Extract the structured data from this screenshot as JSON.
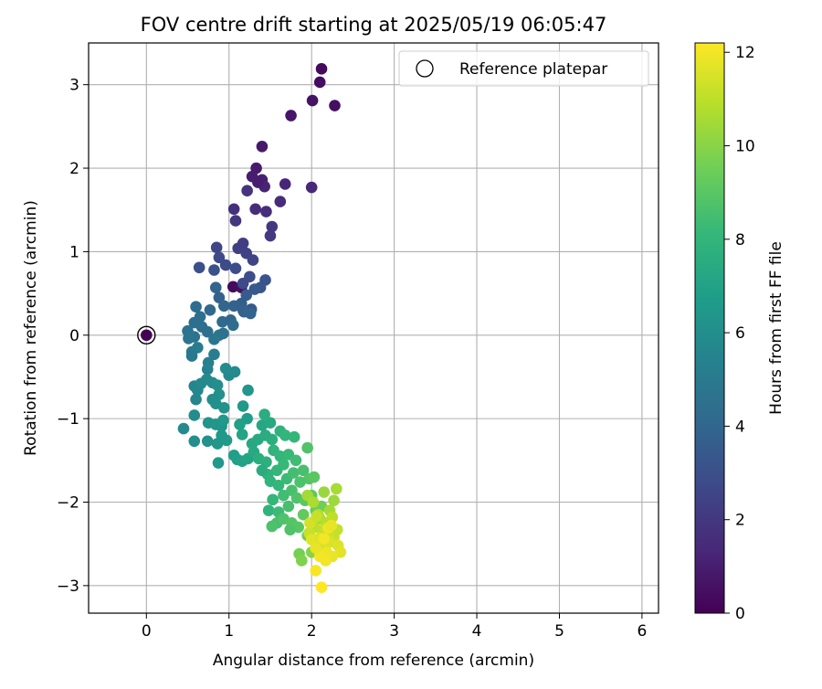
{
  "chart_data": {
    "type": "scatter",
    "title": "FOV centre drift starting at 2025/05/19 06:05:47",
    "xlabel": "Angular distance from reference (arcmin)",
    "ylabel": "Rotation from reference (arcmin)",
    "xlim": [
      -0.7,
      6.2
    ],
    "ylim": [
      -3.33,
      3.5
    ],
    "xticks": [
      0,
      1,
      2,
      3,
      4,
      5,
      6
    ],
    "yticks": [
      -3,
      -2,
      -1,
      0,
      1,
      2,
      3
    ],
    "grid": true,
    "legend": {
      "position": "top-right",
      "entries": [
        "Reference platepar"
      ]
    },
    "reference_point": {
      "label": "Reference platepar",
      "x": 0,
      "y": 0
    },
    "colorbar": {
      "label": "Hours from first FF file",
      "range": [
        0,
        12.2
      ],
      "ticks": [
        0,
        2,
        4,
        6,
        8,
        10,
        12
      ],
      "colormap": "viridis",
      "colors": [
        "#440154",
        "#482878",
        "#3e4989",
        "#31688e",
        "#26828e",
        "#1f9e89",
        "#35b779",
        "#6ece58",
        "#b5de2b",
        "#fde725"
      ]
    },
    "series": [
      {
        "points": [
          [
            0,
            0,
            0
          ],
          [
            1.05,
            0.58,
            0.3
          ],
          [
            1.15,
            0.57,
            0.5
          ],
          [
            2.12,
            3.19,
            0.3
          ],
          [
            2.1,
            3.03,
            0.4
          ],
          [
            2.28,
            2.75,
            0.5
          ],
          [
            2.01,
            2.81,
            0.6
          ],
          [
            1.75,
            2.63,
            0.7
          ],
          [
            1.4,
            2.26,
            0.8
          ],
          [
            1.33,
            2.0,
            0.9
          ],
          [
            1.28,
            1.9,
            1.0
          ],
          [
            1.4,
            1.86,
            1.1
          ],
          [
            1.43,
            1.78,
            1.2
          ],
          [
            1.35,
            1.83,
            1.0
          ],
          [
            1.68,
            1.81,
            1.3
          ],
          [
            2.0,
            1.77,
            1.4
          ],
          [
            1.62,
            1.6,
            1.5
          ],
          [
            1.45,
            1.48,
            1.6
          ],
          [
            1.32,
            1.51,
            1.5
          ],
          [
            1.06,
            1.51,
            1.7
          ],
          [
            1.22,
            1.73,
            1.8
          ],
          [
            1.08,
            1.37,
            1.9
          ],
          [
            1.52,
            1.3,
            2.0
          ],
          [
            1.5,
            1.19,
            2.1
          ]
        ]
      },
      {
        "points": [
          [
            1.17,
            1.1,
            2.2
          ],
          [
            1.11,
            1.04,
            2.3
          ],
          [
            1.21,
            0.98,
            2.4
          ],
          [
            1.29,
            0.9,
            2.5
          ],
          [
            0.85,
            1.05,
            2.6
          ],
          [
            0.88,
            0.93,
            2.7
          ],
          [
            0.96,
            0.84,
            2.8
          ],
          [
            1.08,
            0.8,
            2.9
          ],
          [
            0.64,
            0.81,
            3.0
          ],
          [
            0.82,
            0.78,
            3.1
          ],
          [
            1.44,
            0.66,
            3.2
          ],
          [
            1.38,
            0.57,
            3.3
          ],
          [
            1.31,
            0.55,
            3.4
          ],
          [
            1.25,
            0.7,
            2.9
          ],
          [
            1.17,
            0.62,
            2.7
          ],
          [
            1.21,
            0.48,
            3.5
          ],
          [
            1.15,
            0.38,
            3.6
          ],
          [
            1.27,
            0.31,
            3.4
          ],
          [
            1.18,
            0.28,
            3.7
          ],
          [
            1.06,
            0.35,
            3.8
          ],
          [
            0.84,
            0.57,
            3.9
          ],
          [
            0.88,
            0.45,
            3.8
          ],
          [
            0.94,
            0.35,
            4.0
          ],
          [
            0.77,
            0.3,
            4.1
          ],
          [
            0.92,
            0.16,
            4.2
          ],
          [
            1.02,
            0.18,
            4.0
          ],
          [
            1.17,
            0.3,
            3.8
          ],
          [
            1.26,
            0.26,
            3.9
          ],
          [
            0.6,
            0.34,
            4.3
          ],
          [
            0.65,
            0.22,
            4.4
          ],
          [
            0.58,
            0.15,
            4.5
          ],
          [
            0.5,
            0.05,
            4.6
          ],
          [
            0.58,
            -0.02,
            4.7
          ],
          [
            0.67,
            0.1,
            4.4
          ],
          [
            0.74,
            0.04,
            4.5
          ],
          [
            0.82,
            -0.05,
            4.8
          ],
          [
            0.88,
            0.0,
            4.9
          ],
          [
            0.93,
            0.02,
            4.6
          ],
          [
            1.05,
            0.12,
            4.3
          ],
          [
            0.55,
            -0.2,
            5.0
          ],
          [
            0.62,
            -0.15,
            5.1
          ],
          [
            0.82,
            -0.23,
            5.2
          ],
          [
            0.75,
            -0.33,
            5.3
          ],
          [
            0.74,
            -0.41,
            5.4
          ],
          [
            0.55,
            -0.25,
            4.9
          ],
          [
            0.51,
            -0.04,
            4.8
          ]
        ]
      },
      {
        "points": [
          [
            0.58,
            -0.61,
            5.5
          ],
          [
            0.62,
            -0.66,
            5.6
          ],
          [
            0.66,
            -0.58,
            5.7
          ],
          [
            0.6,
            -0.77,
            5.6
          ],
          [
            0.73,
            -0.53,
            5.8
          ],
          [
            0.8,
            -0.57,
            5.9
          ],
          [
            0.86,
            -0.6,
            6.0
          ],
          [
            0.88,
            -0.71,
            6.1
          ],
          [
            1.0,
            -0.48,
            5.7
          ],
          [
            1.07,
            -0.44,
            5.8
          ],
          [
            0.96,
            -0.4,
            5.9
          ],
          [
            1.23,
            -0.66,
            6.4
          ],
          [
            0.8,
            -0.77,
            6.0
          ],
          [
            0.84,
            -0.82,
            6.1
          ],
          [
            0.94,
            -0.87,
            6.2
          ],
          [
            1.17,
            -0.85,
            6.5
          ],
          [
            0.58,
            -0.96,
            5.9
          ],
          [
            0.45,
            -1.12,
            5.8
          ],
          [
            0.58,
            -1.27,
            6.0
          ],
          [
            0.74,
            -1.27,
            6.2
          ],
          [
            0.75,
            -1.05,
            6.3
          ],
          [
            0.84,
            -1.07,
            6.4
          ],
          [
            0.91,
            -1.09,
            6.3
          ],
          [
            0.93,
            -1.02,
            6.5
          ],
          [
            0.86,
            -1.3,
            6.4
          ],
          [
            0.97,
            -1.26,
            6.6
          ],
          [
            0.91,
            -1.2,
            6.5
          ],
          [
            0.87,
            -1.53,
            6.5
          ],
          [
            1.06,
            -1.44,
            6.8
          ],
          [
            1.1,
            -1.49,
            6.9
          ],
          [
            1.16,
            -1.51,
            7.0
          ],
          [
            1.23,
            -1.48,
            7.1
          ],
          [
            1.16,
            -1.19,
            7.1
          ],
          [
            1.13,
            -1.07,
            6.9
          ],
          [
            1.22,
            -1.0,
            6.8
          ]
        ]
      },
      {
        "points": [
          [
            1.28,
            -1.3,
            7.3
          ],
          [
            1.35,
            -1.25,
            7.4
          ],
          [
            1.44,
            -1.2,
            7.5
          ],
          [
            1.52,
            -1.25,
            7.6
          ],
          [
            1.4,
            -1.08,
            7.2
          ],
          [
            1.5,
            -1.05,
            7.4
          ],
          [
            1.43,
            -0.95,
            7.6
          ],
          [
            1.62,
            -1.15,
            7.8
          ],
          [
            1.68,
            -1.2,
            8.0
          ],
          [
            1.79,
            -1.22,
            8.1
          ],
          [
            1.3,
            -1.4,
            7.4
          ],
          [
            1.36,
            -1.48,
            7.6
          ],
          [
            1.45,
            -1.52,
            7.7
          ],
          [
            1.54,
            -1.38,
            7.9
          ],
          [
            1.62,
            -1.45,
            8.0
          ],
          [
            1.72,
            -1.43,
            8.2
          ],
          [
            1.81,
            -1.5,
            8.4
          ],
          [
            1.66,
            -1.55,
            8.2
          ],
          [
            1.58,
            -1.62,
            8.1
          ],
          [
            1.47,
            -1.67,
            7.8
          ],
          [
            1.4,
            -1.62,
            7.5
          ],
          [
            1.5,
            -1.75,
            7.9
          ],
          [
            1.6,
            -1.8,
            8.1
          ],
          [
            1.7,
            -1.72,
            8.3
          ],
          [
            1.78,
            -1.65,
            8.5
          ],
          [
            1.9,
            -1.62,
            8.6
          ],
          [
            1.95,
            -1.35,
            8.8
          ],
          [
            1.97,
            -1.72,
            8.9
          ],
          [
            2.03,
            -1.7,
            9.0
          ],
          [
            1.86,
            -1.76,
            8.7
          ],
          [
            1.76,
            -1.86,
            8.6
          ],
          [
            1.66,
            -1.92,
            8.4
          ],
          [
            1.53,
            -1.97,
            8.1
          ],
          [
            1.48,
            -2.1,
            7.9
          ],
          [
            1.6,
            -2.12,
            8.3
          ],
          [
            1.72,
            -2.05,
            8.6
          ],
          [
            1.82,
            -1.95,
            8.8
          ],
          [
            1.92,
            -1.98,
            9.0
          ],
          [
            2.0,
            -1.92,
            9.1
          ],
          [
            1.58,
            -2.25,
            8.6
          ],
          [
            1.52,
            -2.29,
            8.7
          ],
          [
            1.66,
            -2.2,
            8.8
          ],
          [
            1.76,
            -2.25,
            8.9
          ],
          [
            1.84,
            -2.3,
            9.0
          ],
          [
            1.74,
            -2.33,
            8.8
          ],
          [
            1.9,
            -2.15,
            9.2
          ],
          [
            2.05,
            -2.1,
            9.3
          ],
          [
            2.12,
            -2.05,
            9.5
          ],
          [
            1.95,
            -2.4,
            9.4
          ],
          [
            1.85,
            -2.62,
            9.6
          ],
          [
            1.88,
            -2.7,
            9.8
          ],
          [
            2.0,
            -2.6,
            9.9
          ],
          [
            2.08,
            -2.55,
            10.0
          ]
        ]
      },
      {
        "points": [
          [
            2.15,
            -1.88,
            10.3
          ],
          [
            2.27,
            -1.98,
            10.4
          ],
          [
            2.3,
            -1.84,
            10.6
          ],
          [
            2.22,
            -2.1,
            10.5
          ],
          [
            2.1,
            -2.2,
            10.6
          ],
          [
            1.95,
            -1.92,
            10.5
          ],
          [
            2.02,
            -2.0,
            10.7
          ],
          [
            2.08,
            -2.15,
            10.8
          ],
          [
            2.18,
            -2.25,
            10.9
          ],
          [
            2.25,
            -2.18,
            11.0
          ],
          [
            2.31,
            -2.33,
            11.1
          ],
          [
            2.27,
            -2.42,
            11.2
          ],
          [
            2.2,
            -2.38,
            11.3
          ],
          [
            2.12,
            -2.34,
            11.1
          ],
          [
            2.03,
            -2.3,
            11.0
          ],
          [
            1.97,
            -2.37,
            11.2
          ],
          [
            2.05,
            -2.45,
            11.3
          ],
          [
            2.14,
            -2.52,
            11.4
          ],
          [
            2.22,
            -2.48,
            11.5
          ],
          [
            2.32,
            -2.52,
            11.6
          ],
          [
            2.35,
            -2.6,
            11.7
          ],
          [
            2.25,
            -2.65,
            11.8
          ],
          [
            2.18,
            -2.6,
            11.9
          ],
          [
            2.1,
            -2.65,
            12.0
          ],
          [
            2.05,
            -2.55,
            11.8
          ],
          [
            2.0,
            -2.45,
            11.7
          ],
          [
            1.98,
            -2.25,
            11.4
          ],
          [
            2.1,
            -2.43,
            11.6
          ],
          [
            2.17,
            -2.7,
            12.0
          ],
          [
            2.05,
            -2.82,
            12.1
          ],
          [
            2.12,
            -3.02,
            12.2
          ],
          [
            2.2,
            -2.31,
            11.9
          ],
          [
            2.15,
            -2.44,
            12.0
          ],
          [
            2.24,
            -2.28,
            11.8
          ],
          [
            2.06,
            -2.17,
            11.2
          ]
        ]
      }
    ]
  }
}
